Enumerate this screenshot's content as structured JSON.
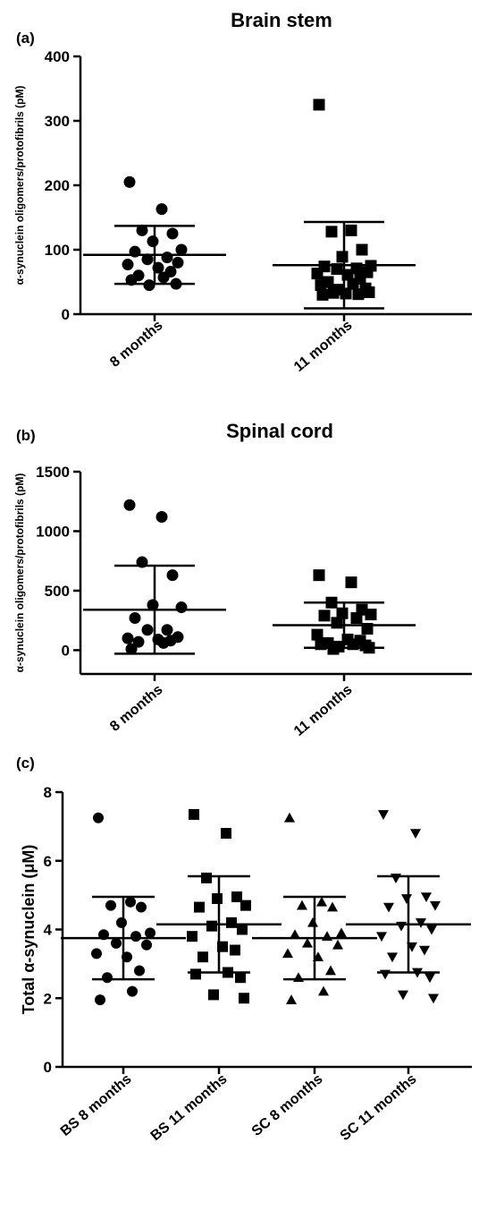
{
  "chart_data": [
    {
      "panel_label": "(a)",
      "type": "scatter",
      "title": "Brain stem",
      "ylabel": "α-synuclein oligomers/protofibrils (pM)",
      "xlabel": "",
      "ylim": [
        0,
        400
      ],
      "yticks": [
        0,
        100,
        200,
        300,
        400
      ],
      "categories": [
        "8 months",
        "11 months"
      ],
      "groups": [
        {
          "category": "8 months",
          "marker": "circle",
          "mean": 92,
          "sd_low": 47,
          "sd_high": 137,
          "points": [
            205,
            163,
            130,
            125,
            113,
            100,
            97,
            88,
            85,
            80,
            77,
            72,
            66,
            60,
            57,
            53,
            47,
            45
          ]
        },
        {
          "category": "11 months",
          "marker": "square",
          "mean": 76,
          "sd_low": 9,
          "sd_high": 143,
          "points": [
            325,
            130,
            128,
            100,
            89,
            75,
            74,
            71,
            70,
            65,
            63,
            61,
            55,
            50,
            47,
            45,
            40,
            38,
            34,
            33,
            32,
            31,
            30
          ]
        }
      ]
    },
    {
      "panel_label": "(b)",
      "type": "scatter",
      "title": "Spinal cord",
      "ylabel": "α-synuclein oligomers/protofibrils (pM)",
      "xlabel": "",
      "ylim": [
        -200,
        1500
      ],
      "yticks": [
        0,
        500,
        1000,
        1500
      ],
      "categories": [
        "8 months",
        "11 months"
      ],
      "groups": [
        {
          "category": "8 months",
          "marker": "circle",
          "mean": 340,
          "sd_low": -30,
          "sd_high": 710,
          "points": [
            1220,
            1120,
            740,
            630,
            380,
            360,
            270,
            170,
            170,
            110,
            100,
            90,
            80,
            70,
            60,
            10
          ]
        },
        {
          "category": "11 months",
          "marker": "square",
          "mean": 210,
          "sd_low": 20,
          "sd_high": 400,
          "points": [
            630,
            570,
            400,
            340,
            310,
            300,
            290,
            270,
            230,
            180,
            130,
            90,
            80,
            60,
            50,
            50,
            40,
            30,
            20,
            10
          ]
        }
      ]
    },
    {
      "panel_label": "(c)",
      "type": "scatter",
      "title": "",
      "ylabel": "Total α-synuclein (μM)",
      "xlabel": "",
      "ylim": [
        0,
        8
      ],
      "yticks": [
        0,
        2,
        4,
        6,
        8
      ],
      "categories": [
        "BS 8 months",
        "BS 11 months",
        "SC 8 months",
        "SC 11 months"
      ],
      "groups": [
        {
          "category": "BS 8 months",
          "marker": "circle",
          "mean": 3.75,
          "sd_low": 2.55,
          "sd_high": 4.95,
          "points": [
            7.25,
            4.8,
            4.7,
            4.65,
            4.2,
            3.9,
            3.85,
            3.8,
            3.6,
            3.55,
            3.3,
            3.2,
            2.8,
            2.6,
            2.2,
            1.95
          ]
        },
        {
          "category": "BS 11 months",
          "marker": "square",
          "mean": 4.15,
          "sd_low": 2.75,
          "sd_high": 5.55,
          "points": [
            7.35,
            6.8,
            5.5,
            4.95,
            4.9,
            4.7,
            4.65,
            4.2,
            4.1,
            4.0,
            3.8,
            3.5,
            3.4,
            3.2,
            2.75,
            2.7,
            2.6,
            2.1,
            2.0
          ]
        },
        {
          "category": "SC 8 months",
          "marker": "triangle",
          "mean": 3.75,
          "sd_low": 2.55,
          "sd_high": 4.95,
          "points": [
            7.25,
            4.8,
            4.7,
            4.65,
            4.2,
            3.9,
            3.85,
            3.8,
            3.6,
            3.55,
            3.3,
            3.2,
            2.8,
            2.6,
            2.2,
            1.95
          ]
        },
        {
          "category": "SC 11 months",
          "marker": "triangle-down",
          "mean": 4.15,
          "sd_low": 2.75,
          "sd_high": 5.55,
          "points": [
            7.35,
            6.8,
            5.5,
            4.95,
            4.9,
            4.7,
            4.65,
            4.2,
            4.1,
            4.0,
            3.8,
            3.5,
            3.4,
            3.2,
            2.75,
            2.7,
            2.6,
            2.1,
            2.0
          ]
        }
      ]
    }
  ]
}
